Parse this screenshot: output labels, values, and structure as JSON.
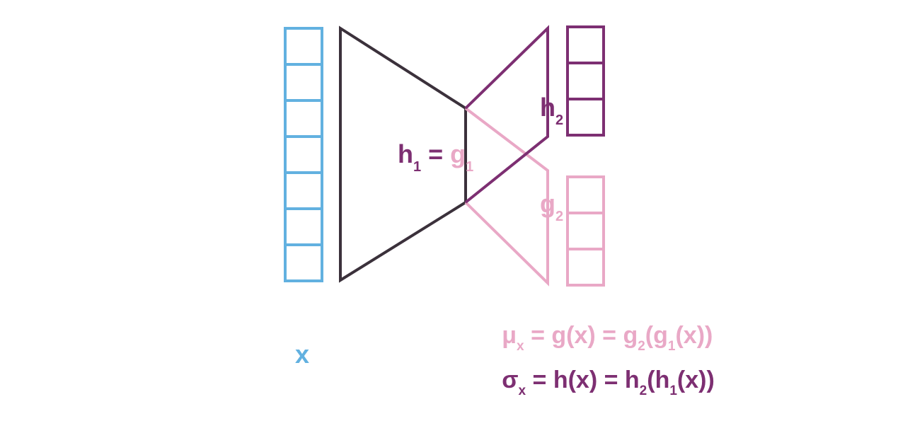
{
  "colors": {
    "input": "#62b1e0",
    "encoder": "#3b313b",
    "h_branch": "#7d2f72",
    "g_branch": "#e9a8c6",
    "background": "#ffffff"
  },
  "input": {
    "label": "x",
    "cells": 7
  },
  "shared_encoder": {
    "h_label": "h",
    "h_sub": "1",
    "equals": "=",
    "g_label": "g",
    "g_sub": "1"
  },
  "h_head": {
    "label": "h",
    "sub": "2",
    "output_cells": 3
  },
  "g_head": {
    "label": "g",
    "sub": "2",
    "output_cells": 3
  },
  "equations": {
    "mu": {
      "symbol": "μ",
      "sub": "x",
      "lhs_tail": " = g(x) = g",
      "sub2": "2",
      "mid": "(g",
      "sub3": "1",
      "end": "(x))"
    },
    "sigma": {
      "symbol": "σ",
      "sub": "x",
      "lhs_tail": " = h(x) = h",
      "sub2": "2",
      "mid": "(h",
      "sub3": "1",
      "end": "(x))"
    }
  }
}
